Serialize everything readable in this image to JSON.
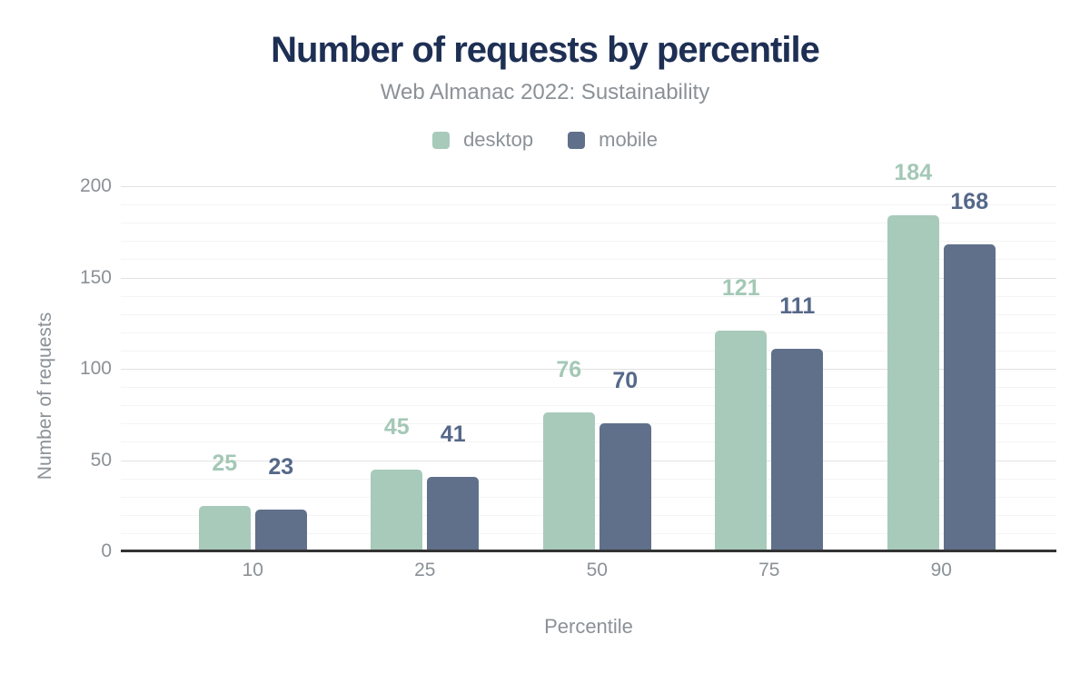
{
  "chart_data": {
    "type": "bar",
    "title": "Number of requests by percentile",
    "subtitle": "Web Almanac 2022: Sustainability",
    "xlabel": "Percentile",
    "ylabel": "Number of requests",
    "categories": [
      "10",
      "25",
      "50",
      "75",
      "90"
    ],
    "series": [
      {
        "name": "desktop",
        "values": [
          25,
          45,
          76,
          121,
          184
        ]
      },
      {
        "name": "mobile",
        "values": [
          23,
          41,
          70,
          111,
          168
        ]
      }
    ],
    "ylim": [
      0,
      200
    ],
    "ytick_step": 50,
    "minor_gridline_step": 10,
    "ytick_labels": [
      "0",
      "50",
      "100",
      "150",
      "200"
    ],
    "grid": "on",
    "legend_position": "top-center",
    "value_labels": "above-bars",
    "colors": {
      "desktop": "#a8cabb",
      "mobile": "#60708b",
      "desktop_value_label": "#a3c8b6",
      "mobile_value_label": "#556889",
      "title": "#1e2f54",
      "axis_text": "#8b9196",
      "grid_major": "#e2e2e2",
      "grid_minor": "#f4f4f4",
      "axis_line": "#333333"
    }
  }
}
